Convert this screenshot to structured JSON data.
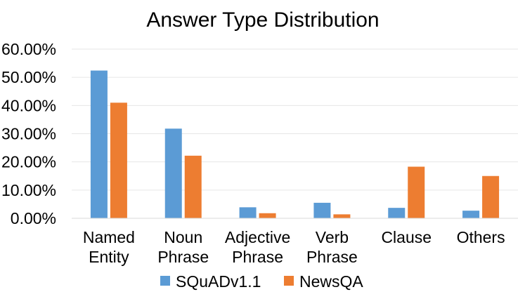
{
  "chart_data": {
    "type": "bar",
    "title": "Answer Type Distribution",
    "categories": [
      [
        "Named",
        "Entity"
      ],
      [
        "Noun",
        "Phrase"
      ],
      [
        "Adjective",
        "Phrase"
      ],
      [
        "Verb",
        "Phrase"
      ],
      [
        "Clause"
      ],
      [
        "Others"
      ]
    ],
    "series": [
      {
        "name": "SQuADv1.1",
        "color": "#5b9bd5",
        "values": [
          52.4,
          31.8,
          3.9,
          5.5,
          3.7,
          2.7
        ]
      },
      {
        "name": "NewsQA",
        "color": "#ed7d31",
        "values": [
          41.0,
          22.2,
          1.8,
          1.4,
          18.3,
          15.0
        ]
      }
    ],
    "ylim": [
      0,
      60
    ],
    "yticks": [
      0,
      10,
      20,
      30,
      40,
      50,
      60
    ],
    "ytick_labels": [
      "0.00%",
      "10.00%",
      "20.00%",
      "30.00%",
      "40.00%",
      "50.00%",
      "60.00%"
    ],
    "grid": true,
    "legend_position": "bottom",
    "xlabel": "",
    "ylabel": ""
  }
}
